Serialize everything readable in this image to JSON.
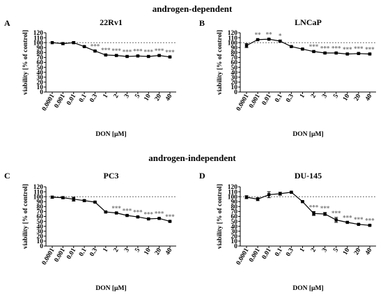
{
  "section_titles": [
    "androgen-dependent",
    "androgen-independent"
  ],
  "chart_data": [
    {
      "type": "line",
      "letter": "A",
      "title": "22Rv1",
      "xlabel": "DON [µM]",
      "ylabel": "viability [% of control]",
      "ylim": [
        0,
        120
      ],
      "yticks": [
        0,
        10,
        20,
        30,
        40,
        50,
        60,
        70,
        80,
        90,
        100,
        110,
        120
      ],
      "reference_line": 100,
      "categories": [
        "0.0001",
        "0.001",
        "0.01",
        "0.1",
        "0.3",
        "1",
        "2",
        "3",
        "5",
        "10",
        "20",
        "40"
      ],
      "values": [
        100,
        98,
        100,
        92,
        83,
        75,
        74,
        72,
        73,
        72,
        74,
        71
      ],
      "errors": [
        1,
        2,
        2,
        1,
        1,
        1,
        1,
        1,
        1,
        1,
        1,
        1
      ],
      "significance": [
        "",
        "",
        "",
        "",
        "***",
        "***",
        "***",
        "***",
        "***",
        "***",
        "***",
        "***"
      ],
      "color": "#000000",
      "reference_color": "#555555",
      "significance_color": "#777777"
    },
    {
      "type": "line",
      "letter": "B",
      "title": "LNCaP",
      "xlabel": "DON [µM]",
      "ylabel": "viability [% of control]",
      "ylim": [
        0,
        120
      ],
      "yticks": [
        0,
        10,
        20,
        30,
        40,
        50,
        60,
        70,
        80,
        90,
        100,
        110,
        120
      ],
      "reference_line": 100,
      "categories": [
        "0.0001",
        "0.001",
        "0.01",
        "0.1",
        "0.3",
        "1",
        "2",
        "3",
        "5",
        "10",
        "20",
        "40"
      ],
      "values": [
        94,
        106,
        107,
        103,
        92,
        87,
        82,
        79,
        79,
        77,
        78,
        77
      ],
      "errors": [
        4,
        1,
        1,
        2,
        1,
        1,
        1,
        1,
        1,
        1,
        1,
        1
      ],
      "significance": [
        "",
        "**",
        "**",
        "*",
        "",
        "",
        "***",
        "***",
        "***",
        "***",
        "***",
        "***"
      ],
      "color": "#000000",
      "reference_color": "#555555",
      "significance_color": "#777777"
    },
    {
      "type": "line",
      "letter": "C",
      "title": "PC3",
      "xlabel": "DON [µM]",
      "ylabel": "viability [% of control]",
      "ylim": [
        0,
        120
      ],
      "yticks": [
        0,
        10,
        20,
        30,
        40,
        50,
        60,
        70,
        80,
        90,
        100,
        110,
        120
      ],
      "reference_line": 100,
      "categories": [
        "0.0001",
        "0.001",
        "0.01",
        "0.1",
        "0.3",
        "1",
        "2",
        "3",
        "5",
        "10",
        "20",
        "40"
      ],
      "values": [
        99,
        98,
        95,
        92,
        89,
        69,
        67,
        62,
        59,
        55,
        56,
        50
      ],
      "errors": [
        2,
        2,
        4,
        2,
        1,
        1,
        1,
        1,
        1,
        1,
        1,
        1
      ],
      "significance": [
        "",
        "",
        "",
        "",
        "",
        "",
        "***",
        "***",
        "***",
        "***",
        "***",
        "***"
      ],
      "color": "#000000",
      "reference_color": "#555555",
      "significance_color": "#777777"
    },
    {
      "type": "line",
      "letter": "D",
      "title": "DU-145",
      "xlabel": "DON [µM]",
      "ylabel": "viability [% of control]",
      "ylim": [
        0,
        120
      ],
      "yticks": [
        0,
        10,
        20,
        30,
        40,
        50,
        60,
        70,
        80,
        90,
        100,
        110,
        120
      ],
      "reference_line": 100,
      "categories": [
        "0.0001",
        "0.001",
        "0.01",
        "0.1",
        "0.3",
        "1",
        "2",
        "3",
        "5",
        "10",
        "20",
        "40"
      ],
      "values": [
        99,
        95,
        104,
        106,
        109,
        90,
        66,
        65,
        53,
        48,
        44,
        42
      ],
      "errors": [
        3,
        3,
        6,
        3,
        1,
        1,
        4,
        3,
        5,
        1,
        1,
        1
      ],
      "significance": [
        "",
        "",
        "",
        "",
        "",
        "",
        "***",
        "***",
        "***",
        "***",
        "***",
        "***"
      ],
      "color": "#000000",
      "reference_color": "#555555",
      "significance_color": "#777777"
    }
  ]
}
